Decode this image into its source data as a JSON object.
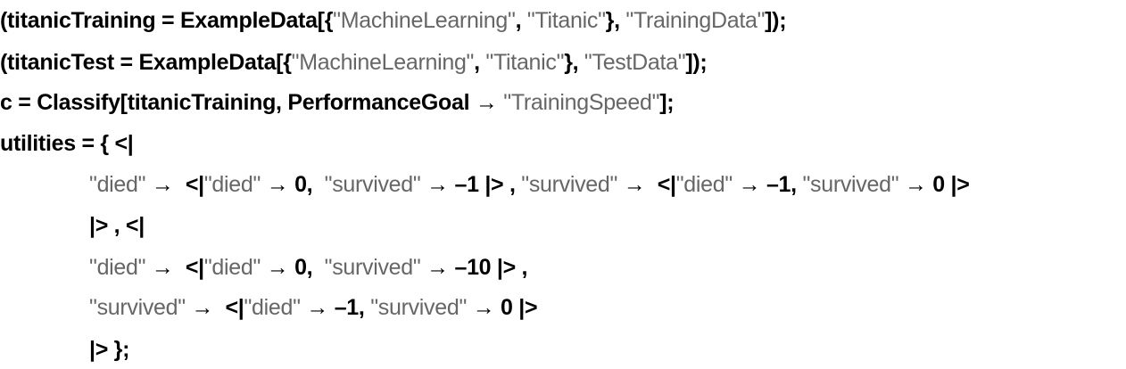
{
  "colors": {
    "code": "#000000",
    "string": "#666666",
    "background": "#ffffff"
  },
  "lines": [
    {
      "indent": 0,
      "segments": [
        {
          "t": "c",
          "v": "(titanicTraining = ExampleData[{"
        },
        {
          "t": "s",
          "v": "\"MachineLearning\""
        },
        {
          "t": "c",
          "v": ", "
        },
        {
          "t": "s",
          "v": "\"Titanic\""
        },
        {
          "t": "c",
          "v": "}, "
        },
        {
          "t": "s",
          "v": "\"TrainingData\""
        },
        {
          "t": "c",
          "v": "]);"
        }
      ]
    },
    {
      "indent": 0,
      "segments": [
        {
          "t": "c",
          "v": "(titanicTest = ExampleData[{"
        },
        {
          "t": "s",
          "v": "\"MachineLearning\""
        },
        {
          "t": "c",
          "v": ", "
        },
        {
          "t": "s",
          "v": "\"Titanic\""
        },
        {
          "t": "c",
          "v": "}, "
        },
        {
          "t": "s",
          "v": "\"TestData\""
        },
        {
          "t": "c",
          "v": "]);"
        }
      ]
    },
    {
      "indent": 0,
      "segments": [
        {
          "t": "c",
          "v": "c = Classify[titanicTraining, PerformanceGoal → "
        },
        {
          "t": "s",
          "v": "\"TrainingSpeed\""
        },
        {
          "t": "c",
          "v": "];"
        }
      ]
    },
    {
      "indent": 0,
      "segments": [
        {
          "t": "c",
          "v": "utilities = { <|"
        }
      ]
    },
    {
      "indent": 1,
      "segments": [
        {
          "t": "s",
          "v": "\"died\""
        },
        {
          "t": "c",
          "v": " →  <|"
        },
        {
          "t": "s",
          "v": "\"died\""
        },
        {
          "t": "c",
          "v": " → 0,  "
        },
        {
          "t": "s",
          "v": "\"survived\""
        },
        {
          "t": "c",
          "v": " → –1 |> , "
        },
        {
          "t": "s",
          "v": "\"survived\""
        },
        {
          "t": "c",
          "v": " →  <|"
        },
        {
          "t": "s",
          "v": "\"died\""
        },
        {
          "t": "c",
          "v": " → –1, "
        },
        {
          "t": "s",
          "v": "\"survived\""
        },
        {
          "t": "c",
          "v": " → 0 |>"
        }
      ]
    },
    {
      "indent": 1,
      "segments": [
        {
          "t": "c",
          "v": "|> , <|"
        }
      ]
    },
    {
      "indent": 1,
      "segments": [
        {
          "t": "s",
          "v": "\"died\""
        },
        {
          "t": "c",
          "v": " →  <|"
        },
        {
          "t": "s",
          "v": "\"died\""
        },
        {
          "t": "c",
          "v": " → 0,  "
        },
        {
          "t": "s",
          "v": "\"survived\""
        },
        {
          "t": "c",
          "v": " → –10 |> ,"
        }
      ]
    },
    {
      "indent": 1,
      "segments": [
        {
          "t": "s",
          "v": "\"survived\""
        },
        {
          "t": "c",
          "v": " →  <|"
        },
        {
          "t": "s",
          "v": "\"died\""
        },
        {
          "t": "c",
          "v": " → –1, "
        },
        {
          "t": "s",
          "v": "\"survived\""
        },
        {
          "t": "c",
          "v": " → 0 |>"
        }
      ]
    },
    {
      "indent": 1,
      "segments": [
        {
          "t": "c",
          "v": "|> };"
        }
      ]
    }
  ]
}
